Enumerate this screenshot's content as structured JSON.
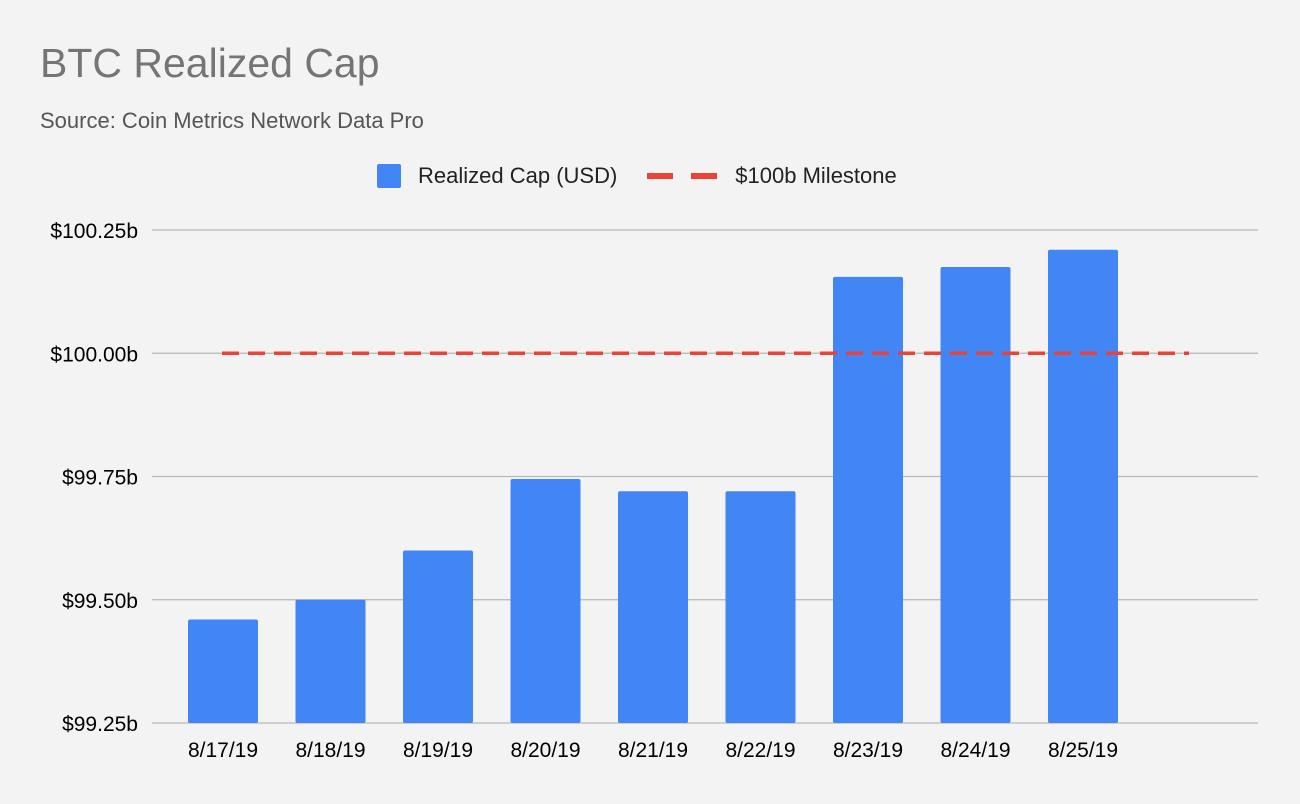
{
  "title": "BTC Realized Cap",
  "subtitle": "Source: Coin Metrics Network Data Pro",
  "legend": {
    "bar_label": "Realized Cap (USD)",
    "line_label": "$100b Milestone"
  },
  "colors": {
    "background": "#f3f3f3",
    "bar": "#4285f4",
    "milestone": "#ea4335",
    "gridline": "#b7b7b7",
    "axis_text": "#000000"
  },
  "chart_data": {
    "type": "bar",
    "title": "BTC Realized Cap",
    "subtitle": "Source: Coin Metrics Network Data Pro",
    "xlabel": "",
    "ylabel": "",
    "categories": [
      "8/17/19",
      "8/18/19",
      "8/19/19",
      "8/20/19",
      "8/21/19",
      "8/22/19",
      "8/23/19",
      "8/24/19",
      "8/25/19"
    ],
    "series": [
      {
        "name": "Realized Cap (USD)",
        "type": "bar",
        "values": [
          99.46,
          99.5,
          99.6,
          99.745,
          99.72,
          99.72,
          100.155,
          100.175,
          100.21
        ]
      },
      {
        "name": "$100b Milestone",
        "type": "line",
        "style": "dashed",
        "values": [
          100,
          100,
          100,
          100,
          100,
          100,
          100,
          100,
          100
        ]
      }
    ],
    "ylim": [
      99.25,
      100.25
    ],
    "yticks": [
      99.25,
      99.5,
      99.75,
      100.0,
      100.25
    ],
    "ytick_labels": [
      "$99.25b",
      "$99.50b",
      "$99.75b",
      "$100.00b",
      "$100.25b"
    ],
    "grid": true,
    "legend_position": "top"
  }
}
